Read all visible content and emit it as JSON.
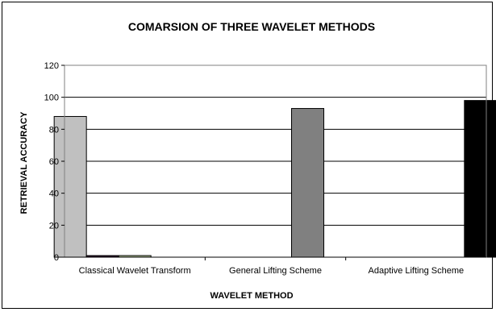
{
  "chart_data": {
    "type": "bar",
    "title": "COMARSION OF THREE WAVELET METHODS",
    "xlabel": "WAVELET METHOD",
    "ylabel": "RETRIEVAL ACCURACY",
    "categories": [
      "Classical Wavelet Transform",
      "General Lifting Scheme",
      "Adaptive Lifting Scheme"
    ],
    "series": [
      {
        "color": "#c0c0c0",
        "values": [
          88,
          0,
          0
        ]
      },
      {
        "color": "#2b0a2b",
        "values": [
          1,
          0,
          0
        ]
      },
      {
        "color": "#b5c89a",
        "values": [
          1,
          0,
          0
        ]
      },
      {
        "color": "#808080",
        "values": [
          0,
          93,
          0
        ]
      },
      {
        "color": "#000000",
        "values": [
          0,
          0,
          98
        ]
      }
    ],
    "ylim": [
      0,
      120
    ],
    "yticks": [
      0,
      20,
      40,
      60,
      80,
      100,
      120
    ],
    "grid": true,
    "legend": "none"
  }
}
